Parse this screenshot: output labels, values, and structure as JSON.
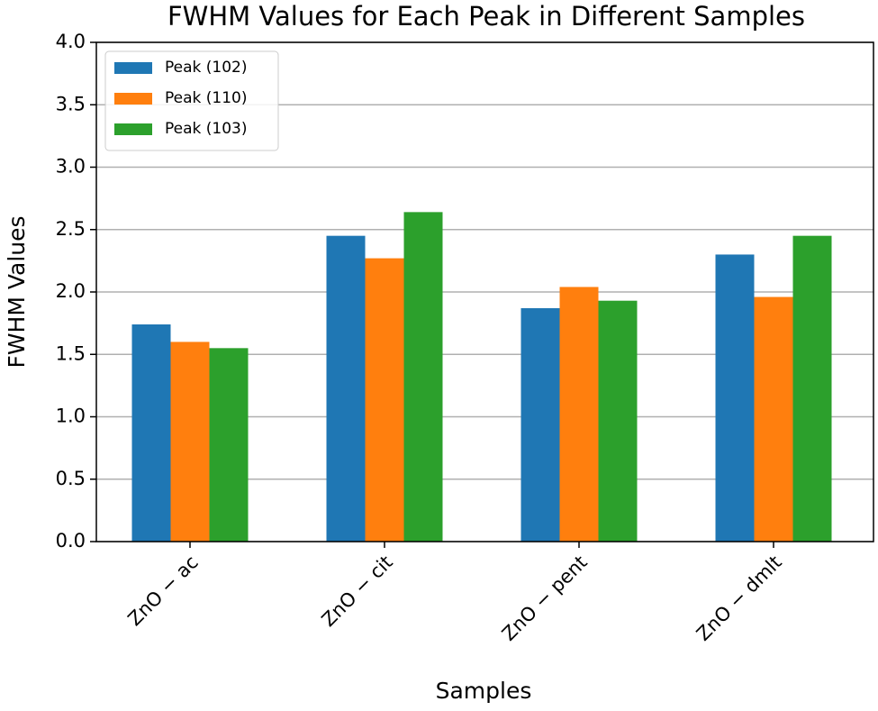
{
  "chart_data": {
    "type": "grouped-bar",
    "title": "FWHM Values for Each Peak in Different Samples",
    "x_label": "Samples",
    "y_label": "FWHM Values",
    "categories": [
      "ZnO − ac",
      "ZnO − cit",
      "ZnO − pent",
      "ZnO − dmlt"
    ],
    "series": [
      {
        "name": "Peak (102)",
        "color": "#1f77b4",
        "values": [
          1.74,
          2.45,
          1.87,
          2.3
        ]
      },
      {
        "name": "Peak (110)",
        "color": "#ff7f0e",
        "values": [
          1.6,
          2.27,
          2.04,
          1.96
        ]
      },
      {
        "name": "Peak (103)",
        "color": "#2ca02c",
        "values": [
          1.55,
          2.64,
          1.93,
          2.45
        ]
      }
    ],
    "ylim": [
      0,
      4
    ],
    "yticks": [
      {
        "value": 0,
        "label": "0.0"
      },
      {
        "value": 0.5,
        "label": "0.5"
      },
      {
        "value": 1,
        "label": "1.0"
      },
      {
        "value": 1.5,
        "label": "1.5"
      },
      {
        "value": 2,
        "label": "2.0"
      },
      {
        "value": 2.5,
        "label": "2.5"
      },
      {
        "value": 3,
        "label": "3.0"
      },
      {
        "value": 3.5,
        "label": "3.5"
      },
      {
        "value": 4,
        "label": "4.0"
      }
    ],
    "grid": true,
    "legend": "upper-left"
  }
}
